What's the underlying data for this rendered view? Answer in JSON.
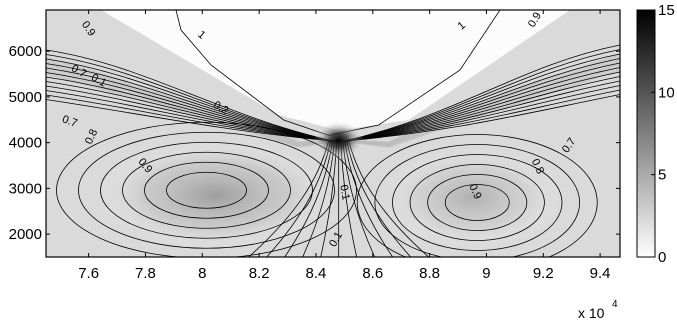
{
  "chart_data": {
    "type": "heatmap",
    "title": "",
    "xlabel": "",
    "ylabel": "",
    "xlim": [
      74500,
      94700
    ],
    "ylim": [
      1500,
      6900
    ],
    "x_ticks": [
      76000,
      78000,
      80000,
      82000,
      84000,
      86000,
      88000,
      90000,
      92000,
      94000
    ],
    "x_tick_labels": [
      "7.6",
      "7.8",
      "8",
      "8.2",
      "8.4",
      "8.6",
      "8.8",
      "9",
      "9.2",
      "9.4"
    ],
    "x_multiplier": "x 10",
    "x_multiplier_exponent": "4",
    "y_ticks": [
      2000,
      3000,
      4000,
      5000,
      6000
    ],
    "y_tick_labels": [
      "2000",
      "3000",
      "4000",
      "5000",
      "6000"
    ],
    "colorbar": {
      "colormap": "gray_reversed",
      "range": [
        0,
        15
      ],
      "ticks": [
        0,
        5,
        10,
        15
      ],
      "tick_labels": [
        "0",
        "5",
        "10",
        "15"
      ]
    },
    "contour_labels": [
      {
        "text": "0.9",
        "x": 75900,
        "y": 6450,
        "angle": 55
      },
      {
        "text": "0.1",
        "x": 76300,
        "y": 5300,
        "angle": 30
      },
      {
        "text": "0.7",
        "x": 75600,
        "y": 5500,
        "angle": 30
      },
      {
        "text": "0.2",
        "x": 80600,
        "y": 4700,
        "angle": 30
      },
      {
        "text": "0.7",
        "x": 75300,
        "y": 4400,
        "angle": 20
      },
      {
        "text": "0.8",
        "x": 76200,
        "y": 4100,
        "angle": -65
      },
      {
        "text": "0.9",
        "x": 77900,
        "y": 3450,
        "angle": 50
      },
      {
        "text": "1",
        "x": 79900,
        "y": 6300,
        "angle": 40
      },
      {
        "text": "1",
        "x": 89200,
        "y": 6500,
        "angle": -40
      },
      {
        "text": "0.9",
        "x": 91800,
        "y": 6650,
        "angle": -60
      },
      {
        "text": "0.1",
        "x": 84900,
        "y": 2900,
        "angle": 80
      },
      {
        "text": "0.1",
        "x": 84800,
        "y": 1850,
        "angle": -60
      },
      {
        "text": "0.9",
        "x": 89500,
        "y": 2900,
        "angle": 65
      },
      {
        "text": "0.8",
        "x": 91700,
        "y": 3450,
        "angle": 65
      },
      {
        "text": "0.7",
        "x": 93000,
        "y": 3900,
        "angle": -55
      }
    ],
    "peak": {
      "x": 84800,
      "y": 4050,
      "value": 15
    },
    "secondary_maxima": [
      {
        "x": 80500,
        "y": 2850,
        "value": 5
      },
      {
        "x": 89500,
        "y": 2800,
        "value": 4
      }
    ]
  }
}
